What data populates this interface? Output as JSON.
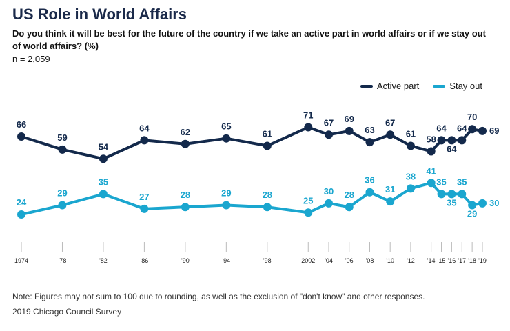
{
  "title": "US Role in World Affairs",
  "subtitle": "Do you think it will be best for the future of the country if we take an active part in world affairs or if we stay out of world affairs? (%)",
  "sample_size": "n = 2,059",
  "note": "Note: Figures may not sum to 100 due to rounding, as well as the exclusion of \"don't know\" and other responses.",
  "source": "2019 Chicago Council Survey",
  "colors": {
    "active": "#13294b",
    "stay": "#1aa6cf"
  },
  "chart_data": {
    "type": "line",
    "title": "US Role in World Affairs",
    "legend_position": "top-right",
    "x": [
      1974,
      1978,
      1982,
      1986,
      1990,
      1994,
      1998,
      2002,
      2004,
      2006,
      2008,
      2010,
      2012,
      2014,
      2015,
      2016,
      2017,
      2018,
      2019
    ],
    "x_tick_labels": [
      "1974",
      "'78",
      "'82",
      "'86",
      "'90",
      "'94",
      "'98",
      "2002",
      "'04",
      "'06",
      "'08",
      "'10",
      "'12",
      "'14",
      "'15",
      "'16",
      "'17",
      "'18",
      "'19"
    ],
    "ylim": [
      0,
      100
    ],
    "series": [
      {
        "name": "Active part",
        "values": [
          66,
          59,
          54,
          64,
          62,
          65,
          61,
          71,
          67,
          69,
          63,
          67,
          61,
          58,
          64,
          64,
          64,
          70,
          69
        ]
      },
      {
        "name": "Stay out",
        "values": [
          24,
          29,
          35,
          27,
          28,
          29,
          28,
          25,
          30,
          28,
          36,
          31,
          38,
          41,
          35,
          35,
          35,
          29,
          30
        ]
      }
    ]
  }
}
